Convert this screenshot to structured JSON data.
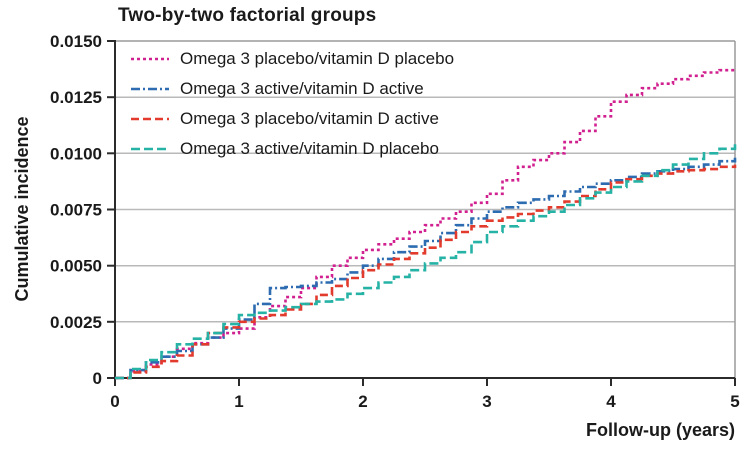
{
  "chart_data": {
    "type": "line",
    "line_style": "step-after",
    "title": "Two-by-two factorial groups",
    "xlabel": "Follow-up (years)",
    "ylabel": "Cumulative incidence",
    "xlim": [
      0,
      5
    ],
    "ylim": [
      0,
      0.015
    ],
    "x_ticks": [
      0,
      1,
      2,
      3,
      4,
      5
    ],
    "x_tick_labels": [
      "0",
      "1",
      "2",
      "3",
      "4",
      "5"
    ],
    "y_ticks": [
      0,
      0.0025,
      0.005,
      0.0075,
      0.01,
      0.0125,
      0.015
    ],
    "y_tick_labels": [
      "0",
      "0.0025",
      "0.0050",
      "0.0075",
      "0.0100",
      "0.0125",
      "0.0150"
    ],
    "grid": "horizontal",
    "legend_position": "top-left-inside",
    "x": [
      0,
      0.25,
      0.5,
      0.75,
      1,
      1.25,
      1.5,
      1.75,
      2,
      2.25,
      2.5,
      2.75,
      3,
      3.25,
      3.5,
      3.75,
      4,
      4.25,
      4.5,
      4.75,
      5
    ],
    "series": [
      {
        "id": "omega3-placebo-vitd-placebo",
        "name": "Omega 3 placebo/vitamin D placebo",
        "color": "#d1208f",
        "dash": "3 3",
        "values": [
          0,
          0.0006,
          0.0013,
          0.0018,
          0.0022,
          0.0032,
          0.004,
          0.005,
          0.0057,
          0.0062,
          0.0068,
          0.0074,
          0.0082,
          0.0094,
          0.01,
          0.011,
          0.0123,
          0.0129,
          0.0133,
          0.0136,
          0.0138
        ]
      },
      {
        "id": "omega3-active-vitd-active",
        "name": "Omega 3 active/vitamin D active",
        "color": "#2d6cb0",
        "dash": "9 3 2 3",
        "values": [
          0,
          0.0007,
          0.0012,
          0.0018,
          0.0026,
          0.004,
          0.0041,
          0.0044,
          0.005,
          0.0056,
          0.0061,
          0.0068,
          0.0074,
          0.0078,
          0.0081,
          0.0085,
          0.0088,
          0.0091,
          0.0093,
          0.0095,
          0.0098
        ]
      },
      {
        "id": "omega3-placebo-vitd-active",
        "name": "Omega 3 placebo/vitamin D active",
        "color": "#e23b2e",
        "dash": "8 4",
        "values": [
          0,
          0.0005,
          0.001,
          0.002,
          0.0025,
          0.0028,
          0.0033,
          0.0041,
          0.0048,
          0.0053,
          0.0058,
          0.0065,
          0.007,
          0.0073,
          0.0076,
          0.0081,
          0.0087,
          0.009,
          0.0092,
          0.0093,
          0.0095
        ]
      },
      {
        "id": "omega3-active-vitd-placebo",
        "name": "Omega 3 active/vitamin D placebo",
        "color": "#27b2a6",
        "dash": "9 4",
        "values": [
          0,
          0.0008,
          0.0015,
          0.002,
          0.0028,
          0.003,
          0.0033,
          0.0035,
          0.004,
          0.0045,
          0.0051,
          0.0056,
          0.0065,
          0.007,
          0.0074,
          0.008,
          0.0085,
          0.009,
          0.0095,
          0.01,
          0.0104
        ]
      }
    ]
  }
}
